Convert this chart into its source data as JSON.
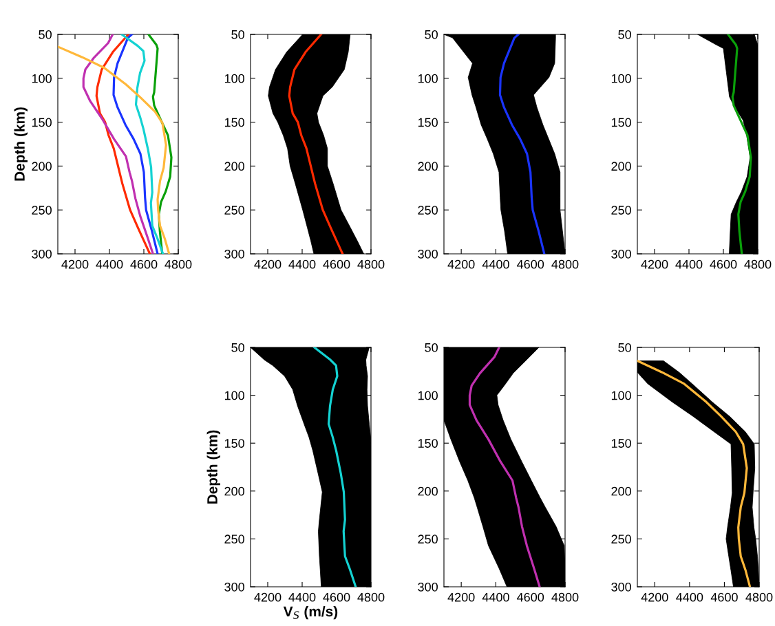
{
  "chart_data": [
    {
      "type": "line",
      "orientation": "horizontal",
      "ylabel": "Depth (km)",
      "xlim": [
        4100,
        4800
      ],
      "xticks": [
        4200,
        4400,
        4600,
        4800
      ],
      "ylim": [
        300,
        50
      ],
      "yticks": [
        50,
        100,
        150,
        200,
        250,
        300
      ],
      "marker": "none",
      "line_style": "solid",
      "series": [
        {
          "color": "#ff2a00",
          "x": [
            50,
            70,
            90,
            110,
            120,
            140,
            150,
            165,
            180,
            200,
            220,
            250,
            270,
            285,
            300
          ],
          "values": [
            4510,
            4420,
            4355,
            4330,
            4325,
            4345,
            4375,
            4395,
            4425,
            4450,
            4475,
            4520,
            4565,
            4600,
            4635
          ]
        },
        {
          "color": "#1a34ff",
          "x": [
            50,
            54,
            83,
            99,
            119,
            133,
            153,
            169,
            186,
            207,
            236,
            250,
            274,
            300
          ],
          "values": [
            4530,
            4507,
            4447,
            4427,
            4424,
            4447,
            4493,
            4540,
            4580,
            4600,
            4607,
            4613,
            4647,
            4680
          ]
        },
        {
          "color": "#0aa00a",
          "x": [
            50,
            62,
            66,
            116,
            121,
            131,
            148,
            165,
            190,
            212,
            229,
            241,
            255,
            274,
            300
          ],
          "values": [
            4627,
            4673,
            4680,
            4660,
            4653,
            4660,
            4700,
            4740,
            4760,
            4753,
            4727,
            4700,
            4687,
            4693,
            4707
          ]
        },
        {
          "color": "#14d2d2",
          "x": [
            50,
            63,
            69,
            80,
            94,
            111,
            130,
            144,
            158,
            182,
            201,
            230,
            242,
            268,
            282,
            300
          ],
          "values": [
            4471,
            4564,
            4597,
            4604,
            4578,
            4562,
            4554,
            4578,
            4598,
            4625,
            4642,
            4649,
            4641,
            4649,
            4678,
            4711
          ]
        },
        {
          "color": "#c030b0",
          "x": [
            50,
            60,
            77,
            90,
            100,
            110,
            126,
            146,
            169,
            189,
            207,
            217,
            237,
            257,
            281,
            300
          ],
          "values": [
            4419,
            4392,
            4308,
            4260,
            4249,
            4249,
            4288,
            4357,
            4426,
            4496,
            4517,
            4531,
            4551,
            4579,
            4621,
            4653
          ]
        },
        {
          "color": "#ffb83a",
          "x": [
            64,
            76,
            88,
            107,
            122,
            138,
            151,
            176,
            202,
            217,
            238,
            250,
            268,
            283,
            300
          ],
          "values": [
            4100,
            4242,
            4369,
            4496,
            4581,
            4665,
            4708,
            4729,
            4715,
            4694,
            4680,
            4683,
            4694,
            4722,
            4747
          ]
        }
      ]
    },
    {
      "type": "line",
      "orientation": "horizontal",
      "xlim": [
        4100,
        4800
      ],
      "xticks": [
        4200,
        4400,
        4600,
        4800
      ],
      "ylim": [
        300,
        50
      ],
      "yticks": [
        50,
        100,
        150,
        200,
        250,
        300
      ],
      "marker": "none",
      "line_style": "solid",
      "series": [
        {
          "color": "#ff2a00",
          "x": [
            50,
            70,
            90,
            110,
            120,
            140,
            150,
            165,
            180,
            200,
            220,
            250,
            270,
            285,
            300
          ],
          "values": [
            4510,
            4420,
            4355,
            4330,
            4325,
            4345,
            4375,
            4395,
            4425,
            4450,
            4475,
            4520,
            4565,
            4600,
            4635
          ],
          "lower": [
            4403,
            4310,
            4245,
            4210,
            4203,
            4230,
            4258,
            4290,
            4315,
            4330,
            4360,
            4403,
            4430,
            4450,
            4468
          ],
          "upper": [
            4679,
            4668,
            4645,
            4575,
            4521,
            4486,
            4495,
            4525,
            4547,
            4547,
            4580,
            4626,
            4680,
            4720,
            4758
          ]
        }
      ]
    },
    {
      "type": "line",
      "orientation": "horizontal",
      "xlim": [
        4100,
        4800
      ],
      "xticks": [
        4200,
        4400,
        4600,
        4800
      ],
      "ylim": [
        300,
        50
      ],
      "yticks": [
        50,
        100,
        150,
        200,
        250,
        300
      ],
      "marker": "none",
      "line_style": "solid",
      "series": [
        {
          "color": "#1a34ff",
          "x": [
            50,
            54,
            83,
            99,
            119,
            133,
            153,
            169,
            186,
            207,
            236,
            250,
            274,
            300
          ],
          "values": [
            4530,
            4507,
            4447,
            4427,
            4424,
            4447,
            4493,
            4540,
            4580,
            4600,
            4607,
            4613,
            4647,
            4680
          ],
          "lower": [
            4100,
            4150,
            4265,
            4240,
            4262,
            4285,
            4315,
            4350,
            4385,
            4418,
            4425,
            4429,
            4450,
            4468
          ],
          "upper": [
            4745,
            4745,
            4740,
            4707,
            4618,
            4637,
            4672,
            4705,
            4740,
            4771,
            4771,
            4771,
            4785,
            4800
          ]
        }
      ]
    },
    {
      "type": "line",
      "orientation": "horizontal",
      "xlim": [
        4100,
        4800
      ],
      "xticks": [
        4200,
        4400,
        4600,
        4800
      ],
      "ylim": [
        300,
        50
      ],
      "yticks": [
        50,
        100,
        150,
        200,
        250,
        300
      ],
      "marker": "none",
      "line_style": "solid",
      "series": [
        {
          "color": "#0aa00a",
          "x": [
            50,
            62,
            66,
            116,
            121,
            131,
            148,
            165,
            190,
            212,
            229,
            241,
            255,
            274,
            300
          ],
          "values": [
            4627,
            4673,
            4680,
            4660,
            4653,
            4660,
            4700,
            4740,
            4760,
            4753,
            4727,
            4700,
            4687,
            4693,
            4707
          ],
          "lower": [
            4450,
            4560,
            4600,
            4632,
            4635,
            4660,
            4715,
            4735,
            4755,
            4738,
            4705,
            4675,
            4645,
            4640,
            4634
          ],
          "upper": [
            4780,
            4800,
            4800,
            4800,
            4800,
            4800,
            4800,
            4800,
            4800,
            4800,
            4800,
            4800,
            4800,
            4800,
            4800
          ]
        }
      ]
    },
    {
      "type": "line",
      "orientation": "horizontal",
      "xlabel": "V$_{S}$ (m/s)",
      "ylabel": "Depth (km)",
      "xlim": [
        4100,
        4800
      ],
      "xticks": [
        4200,
        4400,
        4600,
        4800
      ],
      "ylim": [
        300,
        50
      ],
      "yticks": [
        50,
        100,
        150,
        200,
        250,
        300
      ],
      "marker": "none",
      "line_style": "solid",
      "series": [
        {
          "color": "#14d2d2",
          "x": [
            50,
            63,
            69,
            80,
            94,
            111,
            130,
            144,
            158,
            182,
            201,
            230,
            242,
            268,
            282,
            300
          ],
          "values": [
            4471,
            4564,
            4597,
            4604,
            4578,
            4562,
            4554,
            4578,
            4598,
            4625,
            4642,
            4649,
            4641,
            4649,
            4678,
            4711
          ],
          "lower": [
            4100,
            4180,
            4230,
            4298,
            4345,
            4373,
            4411,
            4440,
            4462,
            4493,
            4517,
            4500,
            4494,
            4500,
            4505,
            4511
          ],
          "upper": [
            4790,
            4770,
            4772,
            4780,
            4777,
            4780,
            4790,
            4798,
            4800,
            4800,
            4800,
            4800,
            4800,
            4800,
            4800,
            4800
          ]
        }
      ]
    },
    {
      "type": "line",
      "orientation": "horizontal",
      "xlim": [
        4100,
        4800
      ],
      "xticks": [
        4200,
        4400,
        4600,
        4800
      ],
      "ylim": [
        300,
        50
      ],
      "yticks": [
        50,
        100,
        150,
        200,
        250,
        300
      ],
      "marker": "none",
      "line_style": "solid",
      "series": [
        {
          "color": "#c030b0",
          "x": [
            50,
            60,
            77,
            90,
            100,
            110,
            126,
            146,
            169,
            189,
            207,
            217,
            237,
            257,
            281,
            300
          ],
          "values": [
            4419,
            4392,
            4308,
            4260,
            4249,
            4249,
            4288,
            4357,
            4426,
            4496,
            4517,
            4531,
            4551,
            4579,
            4621,
            4653
          ],
          "lower": [
            4100,
            4100,
            4100,
            4100,
            4100,
            4100,
            4100,
            4140,
            4190,
            4238,
            4275,
            4292,
            4325,
            4357,
            4419,
            4464
          ],
          "upper": [
            4649,
            4594,
            4500,
            4448,
            4406,
            4413,
            4442,
            4487,
            4549,
            4605,
            4656,
            4686,
            4748,
            4795,
            4800,
            4800
          ]
        }
      ]
    },
    {
      "type": "line",
      "orientation": "horizontal",
      "xlim": [
        4100,
        4800
      ],
      "xticks": [
        4200,
        4400,
        4600,
        4800
      ],
      "ylim": [
        300,
        50
      ],
      "yticks": [
        50,
        100,
        150,
        200,
        250,
        300
      ],
      "marker": "none",
      "line_style": "solid",
      "series": [
        {
          "color": "#ffb83a",
          "x": [
            64,
            76,
            88,
            107,
            122,
            138,
            151,
            176,
            202,
            217,
            238,
            250,
            268,
            283,
            300
          ],
          "values": [
            4100,
            4242,
            4369,
            4496,
            4581,
            4665,
            4708,
            4729,
            4715,
            4694,
            4680,
            4683,
            4694,
            4722,
            4747
          ],
          "lower": [
            4100,
            4100,
            4160,
            4300,
            4420,
            4540,
            4638,
            4642,
            4645,
            4635,
            4618,
            4610,
            4625,
            4638,
            4652
          ],
          "upper": [
            4250,
            4340,
            4415,
            4530,
            4630,
            4720,
            4772,
            4775,
            4765,
            4760,
            4770,
            4780,
            4790,
            4795,
            4800
          ]
        }
      ]
    }
  ]
}
